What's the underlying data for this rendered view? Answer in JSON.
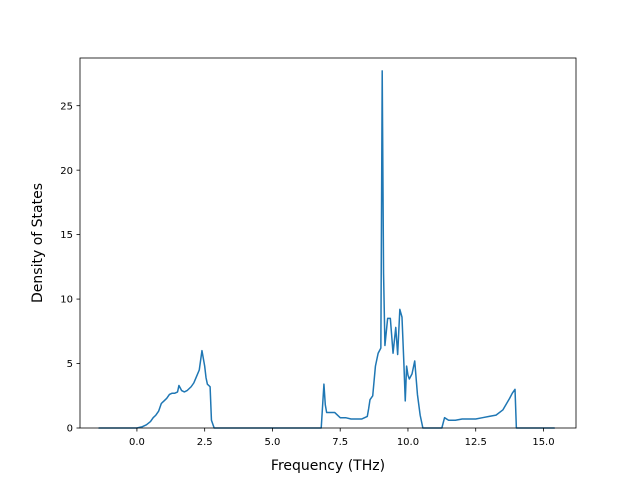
{
  "chart_data": {
    "type": "line",
    "title": "",
    "xlabel": "Frequency (THz)",
    "ylabel": "Density of States",
    "xlim": [
      -2.1,
      16.2
    ],
    "ylim": [
      0,
      28.7
    ],
    "x_ticks": [
      0.0,
      2.5,
      5.0,
      7.5,
      10.0,
      12.5,
      15.0
    ],
    "x_tick_labels": [
      "0.0",
      "2.5",
      "5.0",
      "7.5",
      "10.0",
      "12.5",
      "15.0"
    ],
    "y_ticks": [
      0,
      5,
      10,
      15,
      20,
      25
    ],
    "y_tick_labels": [
      "0",
      "5",
      "10",
      "15",
      "20",
      "25"
    ],
    "grid": false,
    "legend": "none",
    "colors": {
      "line": "#1f77b4",
      "axes": "#000000",
      "background": "#ffffff"
    },
    "series": [
      {
        "x": [
          -1.4,
          -1.0,
          -0.5,
          0.0,
          0.2,
          0.35,
          0.5,
          0.6,
          0.7,
          0.8,
          0.9,
          0.95,
          1.0,
          1.1,
          1.2,
          1.3,
          1.4,
          1.5,
          1.55,
          1.6,
          1.65,
          1.75,
          1.85,
          2.0,
          2.1,
          2.2,
          2.3,
          2.4,
          2.5,
          2.55,
          2.6,
          2.7,
          2.75,
          2.85,
          3.2,
          4.0,
          5.0,
          6.0,
          6.8,
          6.9,
          6.95,
          7.0,
          7.3,
          7.5,
          7.7,
          7.9,
          8.1,
          8.3,
          8.5,
          8.55,
          8.6,
          8.7,
          8.8,
          8.9,
          9.0,
          9.05,
          9.1,
          9.15,
          9.25,
          9.35,
          9.45,
          9.55,
          9.62,
          9.7,
          9.78,
          9.85,
          9.9,
          9.95,
          10.0,
          10.05,
          10.15,
          10.25,
          10.35,
          10.45,
          10.55,
          10.65,
          10.75,
          11.0,
          11.25,
          11.35,
          11.5,
          11.75,
          12.0,
          12.5,
          12.75,
          13.0,
          13.25,
          13.5,
          13.75,
          13.85,
          13.95,
          14.0,
          14.2,
          15.4
        ],
        "y": [
          0.0,
          0.0,
          0.0,
          0.0,
          0.1,
          0.25,
          0.5,
          0.8,
          1.0,
          1.3,
          1.9,
          2.0,
          2.1,
          2.3,
          2.6,
          2.7,
          2.7,
          2.8,
          3.3,
          3.1,
          2.9,
          2.8,
          2.9,
          3.2,
          3.5,
          4.0,
          4.5,
          6.0,
          4.8,
          3.9,
          3.4,
          3.2,
          0.6,
          0.0,
          0.0,
          0.0,
          0.0,
          0.0,
          0.0,
          3.4,
          1.8,
          1.2,
          1.2,
          0.8,
          0.8,
          0.7,
          0.7,
          0.7,
          0.9,
          1.5,
          2.2,
          2.5,
          4.8,
          5.8,
          6.2,
          27.7,
          12.0,
          6.4,
          8.5,
          8.5,
          5.8,
          7.8,
          5.7,
          9.2,
          8.6,
          5.0,
          2.1,
          4.8,
          4.1,
          3.8,
          4.2,
          5.2,
          2.6,
          1.0,
          0.0,
          0.0,
          0.0,
          0.0,
          0.0,
          0.8,
          0.6,
          0.6,
          0.7,
          0.7,
          0.8,
          0.9,
          1.0,
          1.4,
          2.3,
          2.7,
          3.0,
          0.0,
          0.0,
          0.0
        ]
      }
    ]
  }
}
